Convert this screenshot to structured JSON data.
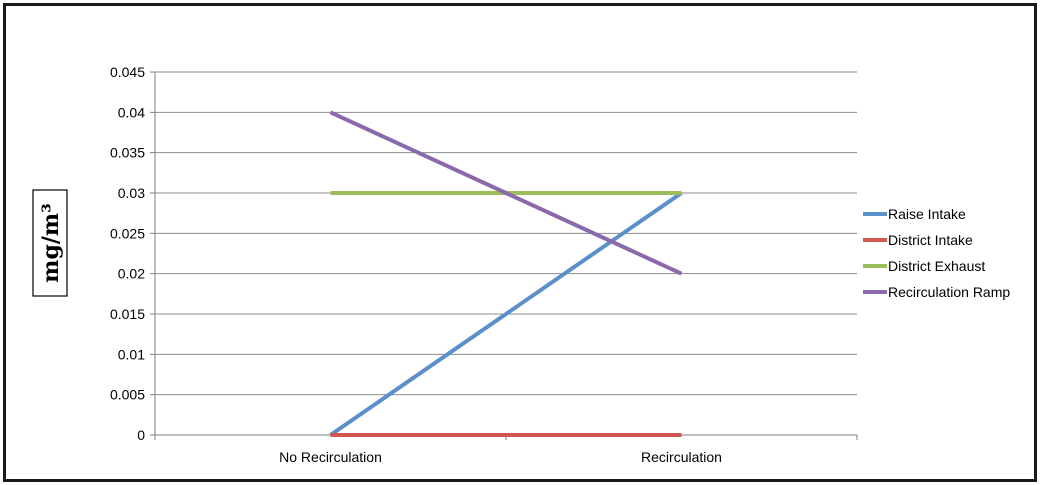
{
  "chart_data": {
    "type": "line",
    "categories": [
      "No Recirculation",
      "Recirculation"
    ],
    "series": [
      {
        "name": "Raise Intake",
        "values": [
          0,
          0.03
        ],
        "color": "#5b8fc9"
      },
      {
        "name": "District Intake",
        "values": [
          0,
          0
        ],
        "color": "#d0574f"
      },
      {
        "name": "District Exhaust",
        "values": [
          0.03,
          0.03
        ],
        "color": "#9bbd5a"
      },
      {
        "name": "Recirculation Ramp",
        "values": [
          0.04,
          0.02
        ],
        "color": "#8b6aab"
      }
    ],
    "ylabel": "mg/m³",
    "ylim": [
      0,
      0.045
    ],
    "yticks": [
      "0",
      "0.005",
      "0.01",
      "0.015",
      "0.02",
      "0.025",
      "0.03",
      "0.035",
      "0.04",
      "0.045"
    ],
    "ytick_values": [
      0,
      0.005,
      0.01,
      0.015,
      0.02,
      0.025,
      0.03,
      0.035,
      0.04,
      0.045
    ],
    "grid": true,
    "legend_position": "right"
  }
}
